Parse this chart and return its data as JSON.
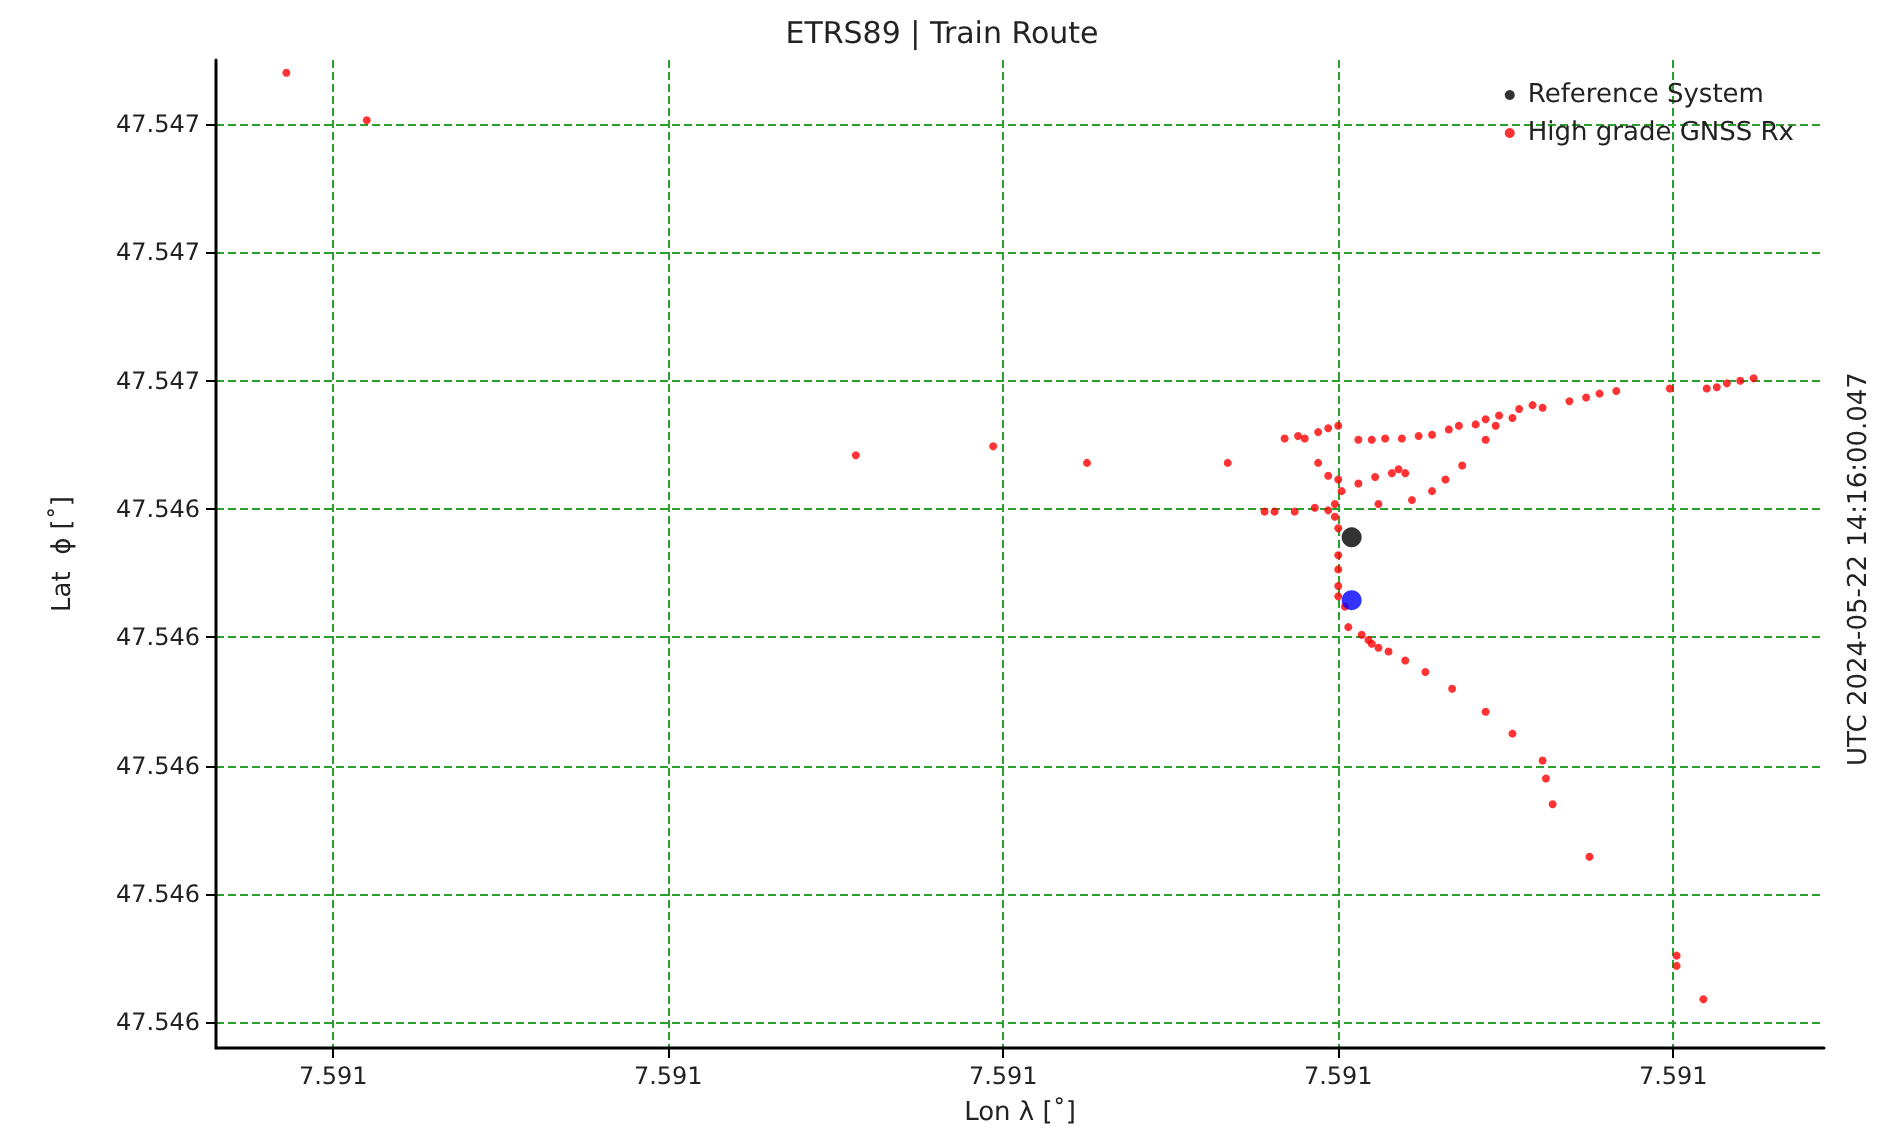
{
  "chart_data": {
    "type": "scatter",
    "title": "ETRS89 | Train Route",
    "xlabel": "Lon λ [˚]",
    "ylabel": "Lat  ϕ [˚]",
    "annotations": [
      "UTC 2024-05-22 14:16:00.047"
    ],
    "xlim": [
      7.590765,
      7.591245
    ],
    "xticks": [
      {
        "value": 7.5908,
        "label": "7.591"
      },
      {
        "value": 7.5909,
        "label": "7.591"
      },
      {
        "value": 7.591,
        "label": "7.591"
      },
      {
        "value": 7.5911,
        "label": "7.591"
      },
      {
        "value": 7.5912,
        "label": "7.591"
      }
    ],
    "ylim": [
      47.54603,
      47.5468
    ],
    "yticks": [
      {
        "value": 47.54675,
        "label": "47.547"
      },
      {
        "value": 47.54665,
        "label": "47.547"
      },
      {
        "value": 47.54655,
        "label": "47.547"
      },
      {
        "value": 47.54645,
        "label": "47.546"
      },
      {
        "value": 47.54635,
        "label": "47.546"
      },
      {
        "value": 47.54625,
        "label": "47.546"
      },
      {
        "value": 47.54615,
        "label": "47.546"
      },
      {
        "value": 47.54605,
        "label": "47.546"
      }
    ],
    "grid": true,
    "legend": "top right",
    "marker": "circle",
    "series": [
      {
        "name": "Reference System",
        "color": "#000000",
        "x": [
          7.591104
        ],
        "values": [
          47.546428
        ]
      },
      {
        "name": "High grade GNSS Rx",
        "color": "#ff0000",
        "x": [
          7.590786,
          7.59081,
          7.590956,
          7.590997,
          7.591025,
          7.591067,
          7.591078,
          7.591081,
          7.591087,
          7.591093,
          7.591097,
          7.591099,
          7.591099,
          7.5911,
          7.5911,
          7.5911,
          7.5911,
          7.5911,
          7.591102,
          7.591103,
          7.591107,
          7.591109,
          7.59111,
          7.591112,
          7.591115,
          7.59112,
          7.591126,
          7.591134,
          7.591144,
          7.591152,
          7.591161,
          7.591162,
          7.591164,
          7.591175,
          7.591201,
          7.591201,
          7.591209,
          7.591101,
          7.591106,
          7.591111,
          7.591116,
          7.591112,
          7.591122,
          7.591128,
          7.591132,
          7.591137,
          7.591144,
          7.591147,
          7.591152,
          7.591158,
          7.591094,
          7.591097,
          7.5911,
          7.591118,
          7.59112,
          7.591084,
          7.591088,
          7.59109,
          7.591094,
          7.591097,
          7.5911,
          7.591106,
          7.59111,
          7.591114,
          7.591119,
          7.591124,
          7.591128,
          7.591133,
          7.591136,
          7.591141,
          7.591144,
          7.591148,
          7.591154,
          7.591161,
          7.591169,
          7.591174,
          7.591178,
          7.591183,
          7.591199,
          7.59121,
          7.591213,
          7.591216,
          7.59122,
          7.591224
        ],
        "values": [
          47.54679,
          47.546753,
          47.546492,
          47.546499,
          47.546486,
          47.546486,
          47.546448,
          47.546448,
          47.546448,
          47.546451,
          47.546449,
          47.546454,
          47.546444,
          47.546435,
          47.546414,
          47.546403,
          47.54639,
          47.546382,
          47.546374,
          47.546358,
          47.546352,
          47.546348,
          47.546345,
          47.546342,
          47.546339,
          47.546332,
          47.546323,
          47.54631,
          47.546292,
          47.546275,
          47.546254,
          47.54624,
          47.54622,
          47.546179,
          47.546102,
          47.546094,
          47.546068,
          47.546464,
          47.54647,
          47.546475,
          47.546478,
          47.546454,
          47.546457,
          47.546464,
          47.546473,
          47.546484,
          47.546504,
          47.546515,
          47.546521,
          47.546531,
          47.546486,
          47.546476,
          47.546473,
          47.546481,
          47.546478,
          47.546505,
          47.546507,
          47.546505,
          47.54651,
          47.546513,
          47.546515,
          47.546504,
          47.546504,
          47.546505,
          47.546505,
          47.546507,
          47.546508,
          47.546512,
          47.546515,
          47.546516,
          47.54652,
          47.546523,
          47.546528,
          47.546529,
          47.546534,
          47.546537,
          47.54654,
          47.546542,
          47.546544,
          47.546544,
          47.546545,
          47.546548,
          47.54655,
          47.546552
        ]
      },
      {
        "color": "#0000ff",
        "x": [
          7.591104
        ],
        "values": [
          47.546379
        ]
      }
    ]
  }
}
